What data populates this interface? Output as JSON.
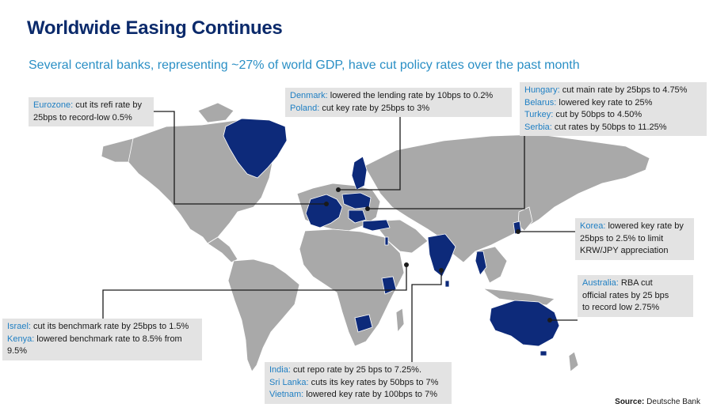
{
  "title": "Worldwide Easing Continues",
  "subtitle": "Several central banks, representing ~27% of world GDP, have cut policy rates over the past month",
  "colors": {
    "title": "#0b2a6b",
    "accent": "#1f7fc3",
    "land": "#a9a9a9",
    "highlight": "#0d2a7a",
    "callout_bg": "#e3e3e3"
  },
  "callouts": {
    "eurozone": {
      "rows": [
        {
          "country": "Eurozone:",
          "text": " cut its refi rate by"
        },
        {
          "country": "",
          "text": "25bps to record-low 0.5%"
        }
      ]
    },
    "denmark_poland": {
      "rows": [
        {
          "country": "Denmark:",
          "text": " lowered the lending rate by 10bps to 0.2%"
        },
        {
          "country": "Poland:",
          "text": " cut key rate by 25bps to 3%"
        }
      ]
    },
    "hungary_group": {
      "rows": [
        {
          "country": "Hungary:",
          "text": " cut main rate by 25bps to 4.75%"
        },
        {
          "country": "Belarus:",
          "text": " lowered key rate to 25%"
        },
        {
          "country": "Turkey:",
          "text": " cut by 50bps to 4.50%"
        },
        {
          "country": "Serbia:",
          "text": " cut rates by 50bps to 11.25%"
        }
      ]
    },
    "korea": {
      "rows": [
        {
          "country": "Korea:",
          "text": " lowered key rate by"
        },
        {
          "country": "",
          "text": "25bps to 2.5% to limit"
        },
        {
          "country": "",
          "text": "KRW/JPY appreciation"
        }
      ]
    },
    "australia": {
      "rows": [
        {
          "country": "Australia:",
          "text": " RBA cut"
        },
        {
          "country": "",
          "text": "official rates by 25 bps"
        },
        {
          "country": "",
          "text": "to record low 2.75%"
        }
      ]
    },
    "israel_kenya": {
      "rows": [
        {
          "country": "Israel:",
          "text": " cut its benchmark rate by 25bps to 1.5%"
        },
        {
          "country": "Kenya:",
          "text": " lowered benchmark rate to 8.5% from"
        },
        {
          "country": "",
          "text": "9.5%"
        }
      ]
    },
    "india_group": {
      "rows": [
        {
          "country": "India:",
          "text": " cut repo rate by 25 bps to 7.25%."
        },
        {
          "country": "Sri Lanka:",
          "text": " cuts its key rates by 50bps to 7%"
        },
        {
          "country": "Vietnam:",
          "text": " lowered key rate by 100bps to 7%"
        }
      ]
    }
  },
  "source": {
    "label": "Source:",
    "text": " Deutsche Bank"
  }
}
